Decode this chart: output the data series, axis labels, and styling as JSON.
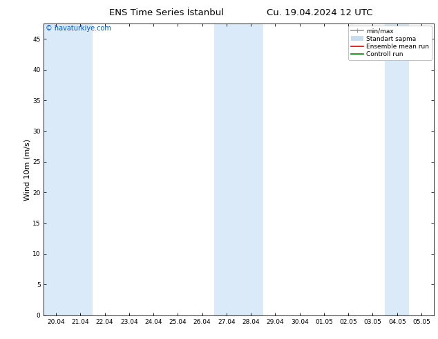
{
  "title_left": "ENS Time Series İstanbul",
  "title_right": "Cu. 19.04.2024 12 UTC",
  "ylabel": "Wind 10m (m/s)",
  "watermark": "© havaturkiye.com",
  "watermark_color": "#0055cc",
  "ylim": [
    0,
    47.5
  ],
  "yticks": [
    0,
    5,
    10,
    15,
    20,
    25,
    30,
    35,
    40,
    45
  ],
  "x_labels": [
    "20.04",
    "21.04",
    "22.04",
    "23.04",
    "24.04",
    "25.04",
    "26.04",
    "27.04",
    "28.04",
    "29.04",
    "30.04",
    "01.05",
    "02.05",
    "03.05",
    "04.05",
    "05.05"
  ],
  "shaded_indices": [
    0,
    1,
    7,
    8,
    14
  ],
  "shade_color": "#daeaf8",
  "legend_items": [
    {
      "label": "min/max",
      "color": "#999999",
      "lw": 1.2
    },
    {
      "label": "Standart sapma",
      "color": "#c8dced",
      "lw": 6
    },
    {
      "label": "Ensemble mean run",
      "color": "#dd0000",
      "lw": 1.2
    },
    {
      "label": "Controll run",
      "color": "#008800",
      "lw": 1.2
    }
  ],
  "background_color": "#ffffff",
  "title_fontsize": 9.5,
  "tick_fontsize": 6.5,
  "ylabel_fontsize": 8,
  "legend_fontsize": 6.5
}
